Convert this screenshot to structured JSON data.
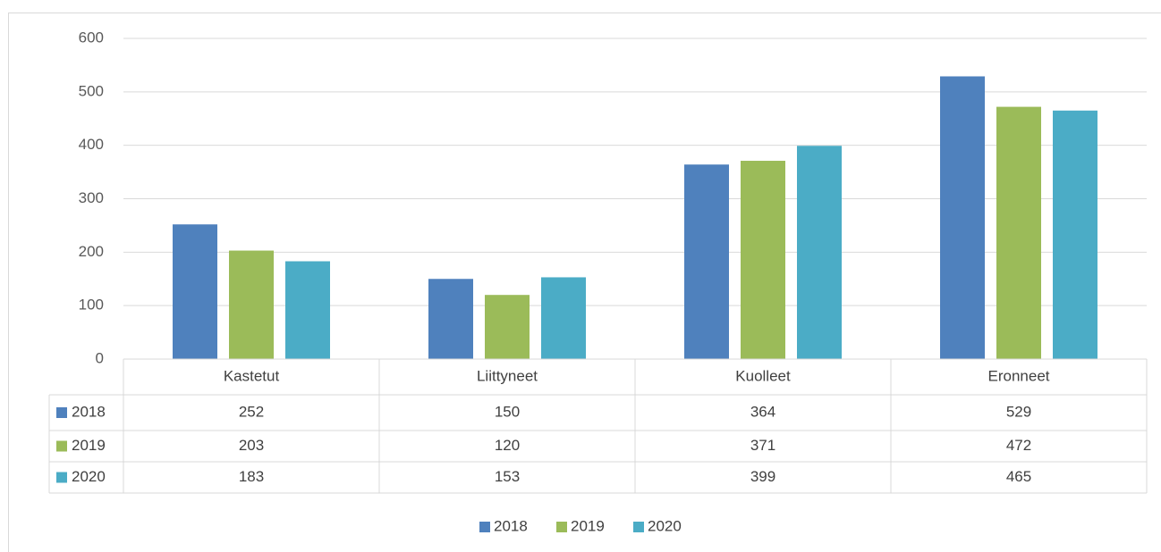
{
  "chart_data": {
    "type": "bar",
    "categories": [
      "Kastetut",
      "Liittyneet",
      "Kuolleet",
      "Eronneet"
    ],
    "series": [
      {
        "name": "2018",
        "color": "#4f81bd",
        "values": [
          252,
          150,
          364,
          529
        ]
      },
      {
        "name": "2019",
        "color": "#9bbb59",
        "values": [
          203,
          120,
          371,
          472
        ]
      },
      {
        "name": "2020",
        "color": "#4bacc6",
        "values": [
          183,
          153,
          399,
          465
        ]
      }
    ],
    "ylim": [
      0,
      600
    ],
    "yticks": [
      0,
      100,
      200,
      300,
      400,
      500,
      600
    ],
    "grid": true,
    "data_table": true,
    "legend": "bottom"
  }
}
